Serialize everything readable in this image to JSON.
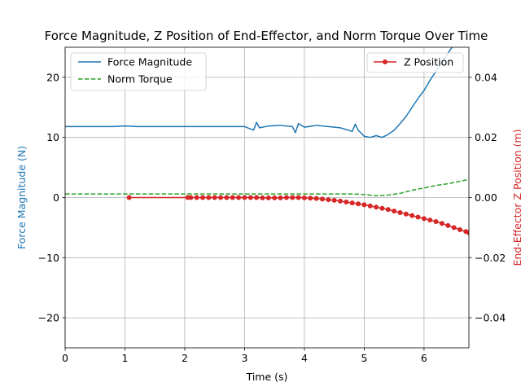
{
  "chart_data": {
    "type": "line",
    "title": "Force Magnitude, Z Position of End-Effector, and Norm Torque Over Time",
    "xlabel": "Time (s)",
    "ylabel_left": "Force Magnitude (N)",
    "ylabel_right": "End-Effector Z Position (m)",
    "xlim": [
      0,
      6.75
    ],
    "ylim_left": [
      -25,
      25
    ],
    "ylim_right": [
      -0.05,
      0.05
    ],
    "xticks": [
      "0",
      "1",
      "2",
      "3",
      "4",
      "5",
      "6"
    ],
    "yticks_left": [
      "−20",
      "−10",
      "0",
      "10",
      "20"
    ],
    "yticks_right": [
      "−0.04",
      "−0.02",
      "0.00",
      "0.02",
      "0.04"
    ],
    "grid": true,
    "legend_left": {
      "placement": "upper left",
      "entries": [
        "Force Magnitude",
        "Norm Torque"
      ]
    },
    "legend_right": {
      "placement": "upper right",
      "entries": [
        "Z Position"
      ]
    },
    "colors": {
      "force": "#1f77b4",
      "torque": "#2ca02c",
      "z": "#d62728",
      "left_label": "#1f77b4",
      "right_label": "#d62728"
    },
    "series": [
      {
        "name": "Force Magnitude",
        "axis": "left",
        "style": "solid",
        "x": [
          0,
          0.2,
          0.4,
          0.6,
          0.8,
          1.0,
          1.2,
          1.4,
          1.6,
          1.8,
          2.0,
          2.2,
          2.4,
          2.6,
          2.8,
          3.0,
          3.15,
          3.2,
          3.25,
          3.4,
          3.6,
          3.8,
          3.85,
          3.9,
          4.0,
          4.2,
          4.4,
          4.6,
          4.8,
          4.85,
          4.9,
          5.0,
          5.1,
          5.2,
          5.3,
          5.4,
          5.5,
          5.6,
          5.7,
          5.8,
          5.9,
          6.0,
          6.1,
          6.2,
          6.3,
          6.4,
          6.5
        ],
        "y": [
          11.8,
          11.8,
          11.8,
          11.8,
          11.8,
          11.9,
          11.8,
          11.8,
          11.8,
          11.8,
          11.8,
          11.8,
          11.8,
          11.8,
          11.8,
          11.8,
          11.2,
          12.5,
          11.6,
          11.9,
          12.0,
          11.8,
          10.8,
          12.3,
          11.7,
          12.0,
          11.8,
          11.6,
          11.0,
          12.2,
          11.2,
          10.2,
          10.0,
          10.3,
          10.0,
          10.5,
          11.2,
          12.3,
          13.5,
          15.0,
          16.5,
          17.8,
          19.5,
          21.0,
          22.5,
          24.0,
          25.5
        ]
      },
      {
        "name": "Norm Torque",
        "axis": "left",
        "style": "dashed",
        "x": [
          0,
          1,
          2,
          3,
          4,
          4.5,
          4.8,
          5.0,
          5.2,
          5.4,
          5.6,
          5.8,
          6.0,
          6.2,
          6.4,
          6.6,
          6.75
        ],
        "y": [
          0.6,
          0.6,
          0.6,
          0.6,
          0.6,
          0.6,
          0.6,
          0.5,
          0.3,
          0.4,
          0.7,
          1.2,
          1.6,
          2.0,
          2.3,
          2.7,
          3.0
        ]
      },
      {
        "name": "Z Position",
        "axis": "right",
        "style": "solid-markers",
        "x": [
          1.07,
          2.05,
          2.1,
          2.2,
          2.3,
          2.4,
          2.5,
          2.6,
          2.7,
          2.8,
          2.9,
          3.0,
          3.1,
          3.2,
          3.3,
          3.4,
          3.5,
          3.6,
          3.7,
          3.8,
          3.9,
          4.0,
          4.1,
          4.2,
          4.3,
          4.4,
          4.5,
          4.6,
          4.7,
          4.8,
          4.9,
          5.0,
          5.1,
          5.2,
          5.3,
          5.4,
          5.5,
          5.6,
          5.7,
          5.8,
          5.9,
          6.0,
          6.1,
          6.2,
          6.3,
          6.4,
          6.5,
          6.6,
          6.7,
          6.75
        ],
        "y": [
          0.0,
          0.0,
          0.0,
          0.0,
          0.0,
          0.0,
          0.0,
          0.0,
          0.0,
          0.0,
          0.0,
          0.0,
          0.0,
          0.0,
          -0.0001,
          -0.0001,
          -0.0001,
          -0.0001,
          0.0,
          0.0,
          0.0,
          -0.0001,
          -0.0002,
          -0.0003,
          -0.0005,
          -0.0007,
          -0.0009,
          -0.0012,
          -0.0015,
          -0.0018,
          -0.0021,
          -0.0024,
          -0.0028,
          -0.0032,
          -0.0036,
          -0.004,
          -0.0045,
          -0.005,
          -0.0055,
          -0.006,
          -0.0065,
          -0.007,
          -0.0075,
          -0.008,
          -0.0086,
          -0.0093,
          -0.01,
          -0.0107,
          -0.0113,
          -0.0117
        ]
      }
    ]
  }
}
